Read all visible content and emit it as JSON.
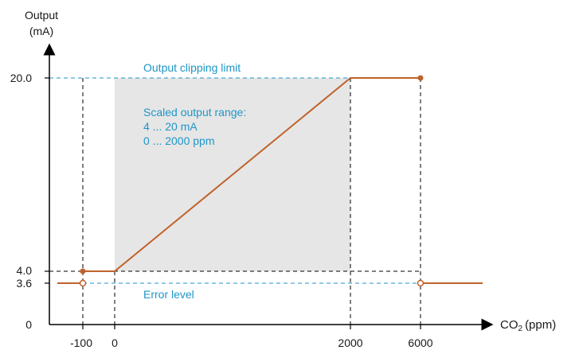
{
  "colors": {
    "curve": "#c0622a",
    "annotation": "#1e96c8",
    "shade": "#e6e6e6",
    "axis": "#000000"
  },
  "y_axis": {
    "title_line1": "Output",
    "title_line2": "(mA)",
    "ticks": [
      "20.0",
      "4.0",
      "3.6",
      "0"
    ]
  },
  "x_axis": {
    "title_main": "CO",
    "title_sub": "2",
    "title_unit": "(ppm)",
    "ticks": [
      "-100",
      "0",
      "2000",
      "6000"
    ]
  },
  "annotations": {
    "clipping_limit": "Output clipping limit",
    "range_title": "Scaled output range:",
    "range_ma": "4 ... 20 mA",
    "range_ppm": "0 ... 2000 ppm",
    "error_level": "Error level"
  },
  "chart_data": {
    "type": "line",
    "series": [
      {
        "points": [
          [
            -100,
            4.0
          ],
          [
            0,
            4.0
          ],
          [
            2000,
            20.0
          ],
          [
            6000,
            20.0
          ]
        ]
      }
    ],
    "error_level_ma": 3.6,
    "clipping_limit_ma": 20.0,
    "scaled_range": {
      "ma": [
        4,
        20
      ],
      "ppm": [
        0,
        2000
      ]
    },
    "x_ticks": [
      -100,
      0,
      2000,
      6000
    ],
    "y_ticks": [
      0,
      3.6,
      4.0,
      20.0
    ]
  }
}
